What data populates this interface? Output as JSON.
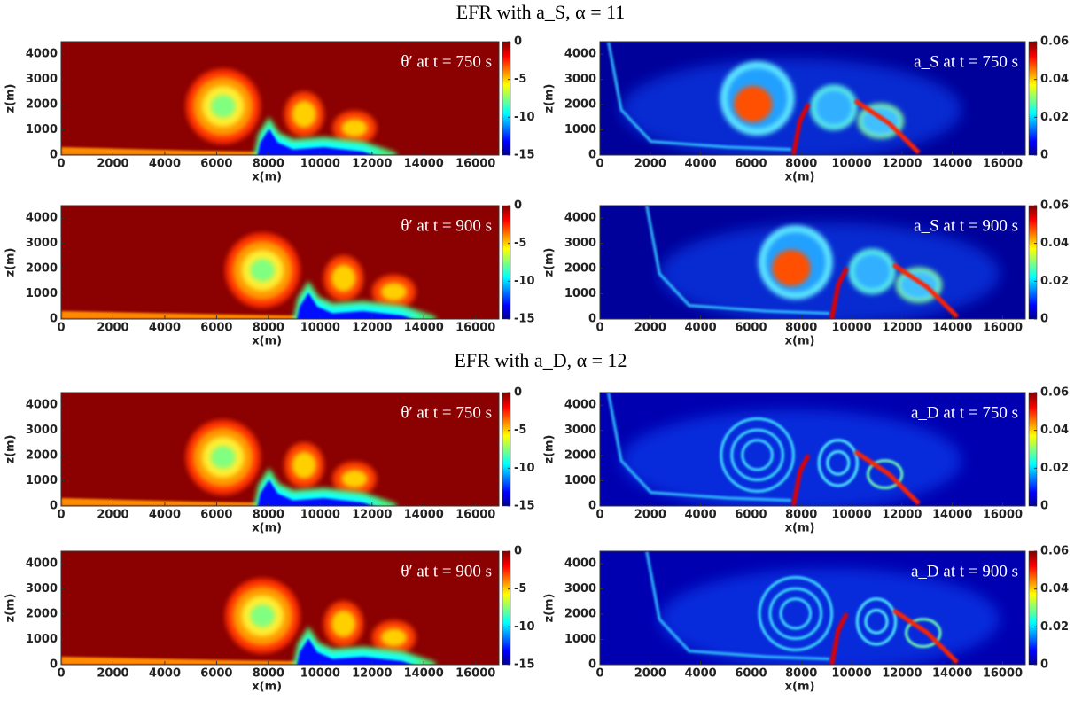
{
  "headings": [
    "EFR with a_S, α = 11",
    "EFR with a_D, α = 12"
  ],
  "chart_data": [
    {
      "type": "heatmap",
      "title": "θ′ at t = 750 s",
      "field": "theta",
      "xlabel": "x(m)",
      "ylabel": "z(m)",
      "xlim": [
        0,
        16900
      ],
      "ylim": [
        0,
        4500
      ],
      "xticks": [
        0,
        2000,
        4000,
        6000,
        8000,
        10000,
        12000,
        14000,
        16000
      ],
      "yticks": [
        0,
        1000,
        2000,
        3000,
        4000
      ],
      "clim": [
        -15,
        0
      ],
      "cticks": [
        -15,
        -10,
        -5,
        0
      ],
      "colormap": "jet"
    },
    {
      "type": "heatmap",
      "title": "a_S at t = 750 s",
      "field": "aS",
      "xlabel": "x(m)",
      "ylabel": "z(m)",
      "xlim": [
        0,
        16900
      ],
      "ylim": [
        0,
        4500
      ],
      "xticks": [
        0,
        2000,
        4000,
        6000,
        8000,
        10000,
        12000,
        14000,
        16000
      ],
      "yticks": [
        0,
        1000,
        2000,
        3000,
        4000
      ],
      "clim": [
        0,
        0.06
      ],
      "cticks": [
        0,
        0.02,
        0.04,
        0.06
      ],
      "colormap": "jet"
    },
    {
      "type": "heatmap",
      "title": "θ′ at t = 900 s",
      "field": "theta",
      "xlabel": "x(m)",
      "ylabel": "z(m)",
      "xlim": [
        0,
        16900
      ],
      "ylim": [
        0,
        4500
      ],
      "xticks": [
        0,
        2000,
        4000,
        6000,
        8000,
        10000,
        12000,
        14000,
        16000
      ],
      "yticks": [
        0,
        1000,
        2000,
        3000,
        4000
      ],
      "clim": [
        -15,
        0
      ],
      "cticks": [
        -15,
        -10,
        -5,
        0
      ],
      "colormap": "jet"
    },
    {
      "type": "heatmap",
      "title": "a_S at t = 900 s",
      "field": "aS",
      "xlabel": "x(m)",
      "ylabel": "z(m)",
      "xlim": [
        0,
        16900
      ],
      "ylim": [
        0,
        4500
      ],
      "xticks": [
        0,
        2000,
        4000,
        6000,
        8000,
        10000,
        12000,
        14000,
        16000
      ],
      "yticks": [
        0,
        1000,
        2000,
        3000,
        4000
      ],
      "clim": [
        0,
        0.06
      ],
      "cticks": [
        0,
        0.02,
        0.04,
        0.06
      ],
      "colormap": "jet"
    },
    {
      "type": "heatmap",
      "title": "θ′ at t = 750 s",
      "field": "theta",
      "xlabel": "x(m)",
      "ylabel": "z(m)",
      "xlim": [
        0,
        16900
      ],
      "ylim": [
        0,
        4500
      ],
      "xticks": [
        0,
        2000,
        4000,
        6000,
        8000,
        10000,
        12000,
        14000,
        16000
      ],
      "yticks": [
        0,
        1000,
        2000,
        3000,
        4000
      ],
      "clim": [
        -15,
        0
      ],
      "cticks": [
        -15,
        -10,
        -5,
        0
      ],
      "colormap": "jet"
    },
    {
      "type": "heatmap",
      "title": "a_D at t = 750 s",
      "field": "aD",
      "xlabel": "x(m)",
      "ylabel": "z(m)",
      "xlim": [
        0,
        16900
      ],
      "ylim": [
        0,
        4500
      ],
      "xticks": [
        0,
        2000,
        4000,
        6000,
        8000,
        10000,
        12000,
        14000,
        16000
      ],
      "yticks": [
        0,
        1000,
        2000,
        3000,
        4000
      ],
      "clim": [
        0,
        0.06
      ],
      "cticks": [
        0,
        0.02,
        0.04,
        0.06
      ],
      "colormap": "jet"
    },
    {
      "type": "heatmap",
      "title": "θ′ at t = 900 s",
      "field": "theta",
      "xlabel": "x(m)",
      "ylabel": "z(m)",
      "xlim": [
        0,
        16900
      ],
      "ylim": [
        0,
        4500
      ],
      "xticks": [
        0,
        2000,
        4000,
        6000,
        8000,
        10000,
        12000,
        14000,
        16000
      ],
      "yticks": [
        0,
        1000,
        2000,
        3000,
        4000
      ],
      "clim": [
        -15,
        0
      ],
      "cticks": [
        -15,
        -10,
        -5,
        0
      ],
      "colormap": "jet"
    },
    {
      "type": "heatmap",
      "title": "a_D at t = 900 s",
      "field": "aD",
      "xlabel": "x(m)",
      "ylabel": "z(m)",
      "xlim": [
        0,
        16900
      ],
      "ylim": [
        0,
        4500
      ],
      "xticks": [
        0,
        2000,
        4000,
        6000,
        8000,
        10000,
        12000,
        14000,
        16000
      ],
      "yticks": [
        0,
        1000,
        2000,
        3000,
        4000
      ],
      "clim": [
        0,
        0.06
      ],
      "cticks": [
        0,
        0.02,
        0.04,
        0.06
      ],
      "colormap": "jet"
    }
  ]
}
